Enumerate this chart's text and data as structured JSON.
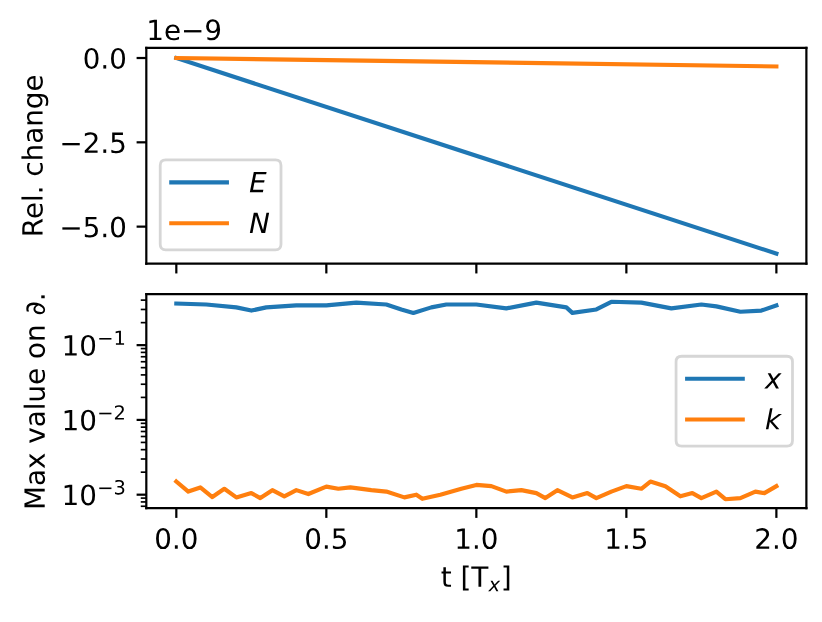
{
  "chart_data": [
    {
      "type": "line",
      "ylabel": "Rel. change",
      "annotations": [
        "1e−9"
      ],
      "legend": "bottom left",
      "grid": false,
      "tick_labels": "y",
      "xlim": [
        -0.1,
        2.1
      ],
      "xticks": [
        {
          "value": 0,
          "label": null
        },
        {
          "value": 0.5,
          "label": null
        },
        {
          "value": 1,
          "label": null
        },
        {
          "value": 1.5,
          "label": null
        },
        {
          "value": 2,
          "label": null
        }
      ],
      "ylim": [
        -6.1,
        0.3
      ],
      "yticks": [
        {
          "value": 0,
          "label": "0.0"
        },
        {
          "value": -2.5,
          "label": "−2.5"
        },
        {
          "value": -5,
          "label": "−5.0"
        }
      ],
      "series": [
        {
          "name": "E",
          "color": "#1f77b4",
          "x": [
            0,
            2
          ],
          "values": [
            0,
            -5.8
          ]
        },
        {
          "name": "N",
          "color": "#ff7f0e",
          "x": [
            0,
            2
          ],
          "values": [
            0,
            -0.25
          ]
        }
      ]
    },
    {
      "type": "line",
      "xlabel": "t [T$_{x}$]",
      "ylabel": "Max value on ∂.",
      "log": "y",
      "legend": "right",
      "grid": false,
      "xlim": [
        -0.1,
        2.1
      ],
      "xticks": [
        {
          "value": 0,
          "label": "0.0"
        },
        {
          "value": 0.5,
          "label": "0.5"
        },
        {
          "value": 1,
          "label": "1.0"
        },
        {
          "value": 1.5,
          "label": "1.5"
        },
        {
          "value": 2,
          "label": "2.0"
        }
      ],
      "ylim": [
        0.00066,
        0.48
      ],
      "yticks": [
        {
          "value": 0.1,
          "label": "10$^{−1}$"
        },
        {
          "value": 0.01,
          "label": "10$^{−2}$"
        },
        {
          "value": 0.001,
          "label": "10$^{−3}$"
        }
      ],
      "series": [
        {
          "name": "x",
          "color": "#1f77b4",
          "x": [
            0,
            0.1,
            0.2,
            0.25,
            0.3,
            0.4,
            0.5,
            0.6,
            0.7,
            0.75,
            0.79,
            0.85,
            0.9,
            1.0,
            1.1,
            1.2,
            1.3,
            1.32,
            1.4,
            1.45,
            1.55,
            1.65,
            1.75,
            1.8,
            1.88,
            1.95,
            2.0
          ],
          "values": [
            0.36,
            0.35,
            0.32,
            0.29,
            0.32,
            0.34,
            0.34,
            0.37,
            0.35,
            0.3,
            0.27,
            0.32,
            0.35,
            0.35,
            0.31,
            0.37,
            0.32,
            0.27,
            0.3,
            0.38,
            0.37,
            0.31,
            0.35,
            0.33,
            0.28,
            0.29,
            0.34
          ]
        },
        {
          "name": "k",
          "color": "#ff7f0e",
          "x": [
            0,
            0.04,
            0.08,
            0.12,
            0.16,
            0.2,
            0.25,
            0.28,
            0.32,
            0.36,
            0.4,
            0.44,
            0.5,
            0.54,
            0.58,
            0.65,
            0.7,
            0.76,
            0.8,
            0.82,
            0.88,
            0.95,
            1.0,
            1.05,
            1.1,
            1.15,
            1.2,
            1.23,
            1.27,
            1.32,
            1.37,
            1.4,
            1.45,
            1.5,
            1.55,
            1.58,
            1.63,
            1.68,
            1.72,
            1.75,
            1.8,
            1.83,
            1.88,
            1.93,
            1.96,
            2.0
          ],
          "values": [
            0.0015,
            0.0011,
            0.00125,
            0.00093,
            0.0012,
            0.00092,
            0.00105,
            0.0009,
            0.00115,
            0.00095,
            0.00115,
            0.00102,
            0.00128,
            0.0012,
            0.00125,
            0.00115,
            0.0011,
            0.00092,
            0.001,
            0.00088,
            0.001,
            0.0012,
            0.00135,
            0.0013,
            0.0011,
            0.00115,
            0.00105,
            0.0009,
            0.00115,
            0.00092,
            0.00105,
            0.0009,
            0.0011,
            0.0013,
            0.0012,
            0.0015,
            0.0013,
            0.00095,
            0.00105,
            0.0009,
            0.0011,
            0.00087,
            0.0009,
            0.0011,
            0.00105,
            0.0013
          ]
        }
      ]
    }
  ]
}
